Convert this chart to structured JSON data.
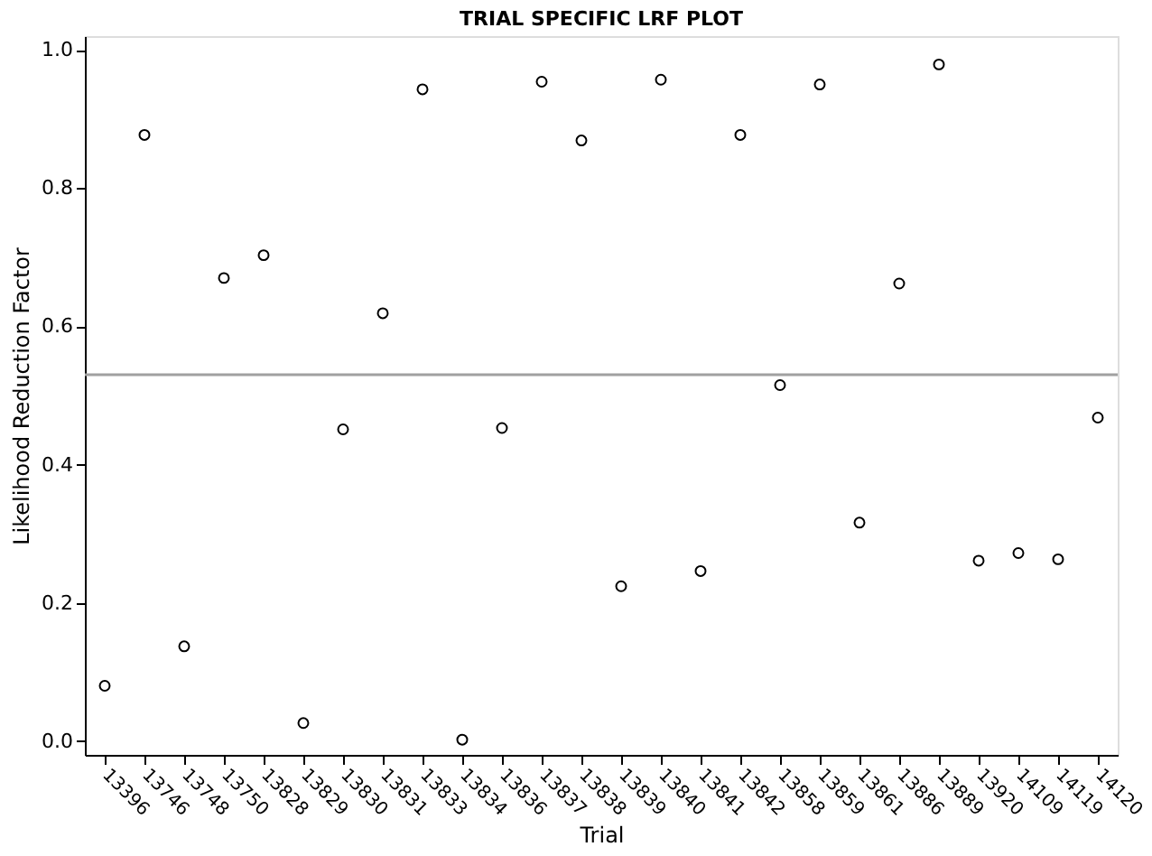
{
  "chart_data": {
    "type": "scatter",
    "title": "TRIAL SPECIFIC LRF PLOT",
    "xlabel": "Trial",
    "ylabel": "Likelihood Reduction Factor",
    "categories": [
      "13396",
      "13746",
      "13748",
      "13750",
      "13828",
      "13829",
      "13830",
      "13831",
      "13833",
      "13834",
      "13836",
      "13837",
      "13838",
      "13839",
      "13840",
      "13841",
      "13842",
      "13858",
      "13859",
      "13861",
      "13886",
      "13889",
      "13920",
      "14109",
      "14119",
      "14120"
    ],
    "series": [
      {
        "color": "#000000",
        "values": [
          0.08,
          0.877,
          0.137,
          0.67,
          0.703,
          0.026,
          0.451,
          0.619,
          0.943,
          0.002,
          0.453,
          0.954,
          0.869,
          0.224,
          0.957,
          0.246,
          0.877,
          0.515,
          0.95,
          0.316,
          0.662,
          0.979,
          0.261,
          0.272,
          0.263,
          0.468
        ]
      }
    ],
    "ylim": [
      -0.02,
      1.02
    ],
    "yticks": [
      {
        "value": 0,
        "label": "0.0"
      },
      0.2,
      0.4,
      0.6,
      0.8,
      {
        "value": 1,
        "label": "1.0"
      }
    ],
    "ref_lines": [
      {
        "axis": "y",
        "value": 0.53,
        "color": "#a0a0a0"
      }
    ],
    "marker": "circle",
    "grid": false,
    "legend": false
  }
}
